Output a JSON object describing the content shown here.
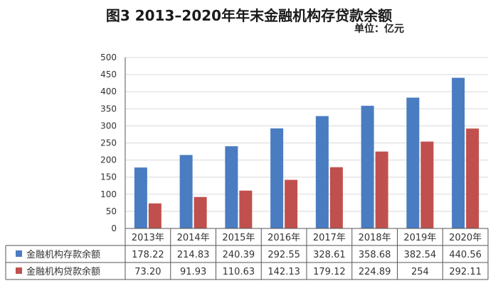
{
  "chart_data": {
    "type": "bar",
    "title": "图3  2013–2020年年末金融机构存贷款余额",
    "unit_label": "单位：亿元",
    "categories": [
      "2013年",
      "2014年",
      "2015年",
      "2016年",
      "2017年",
      "2018年",
      "2019年",
      "2020年"
    ],
    "series": [
      {
        "name": "金融机构存款余额",
        "color": "#4a7cc1",
        "values": [
          178.22,
          214.83,
          240.39,
          292.55,
          328.61,
          358.68,
          382.54,
          440.56
        ],
        "labels": [
          "178.22",
          "214.83",
          "240.39",
          "292.55",
          "328.61",
          "358.68",
          "382.54",
          "440.56"
        ]
      },
      {
        "name": "金融机构贷款余额",
        "color": "#c0504d",
        "values": [
          73.2,
          91.93,
          110.63,
          142.13,
          179.12,
          224.89,
          254,
          292.11
        ],
        "labels": [
          "73.20",
          "91.93",
          "110.63",
          "142.13",
          "179.12",
          "224.89",
          "254",
          "292.11"
        ]
      }
    ],
    "y_ticks": [
      "0",
      "50",
      "100",
      "150",
      "200",
      "250",
      "300",
      "350",
      "400",
      "450",
      "500"
    ],
    "ylim": [
      0,
      500
    ],
    "grid": true,
    "legend": "data-table"
  }
}
